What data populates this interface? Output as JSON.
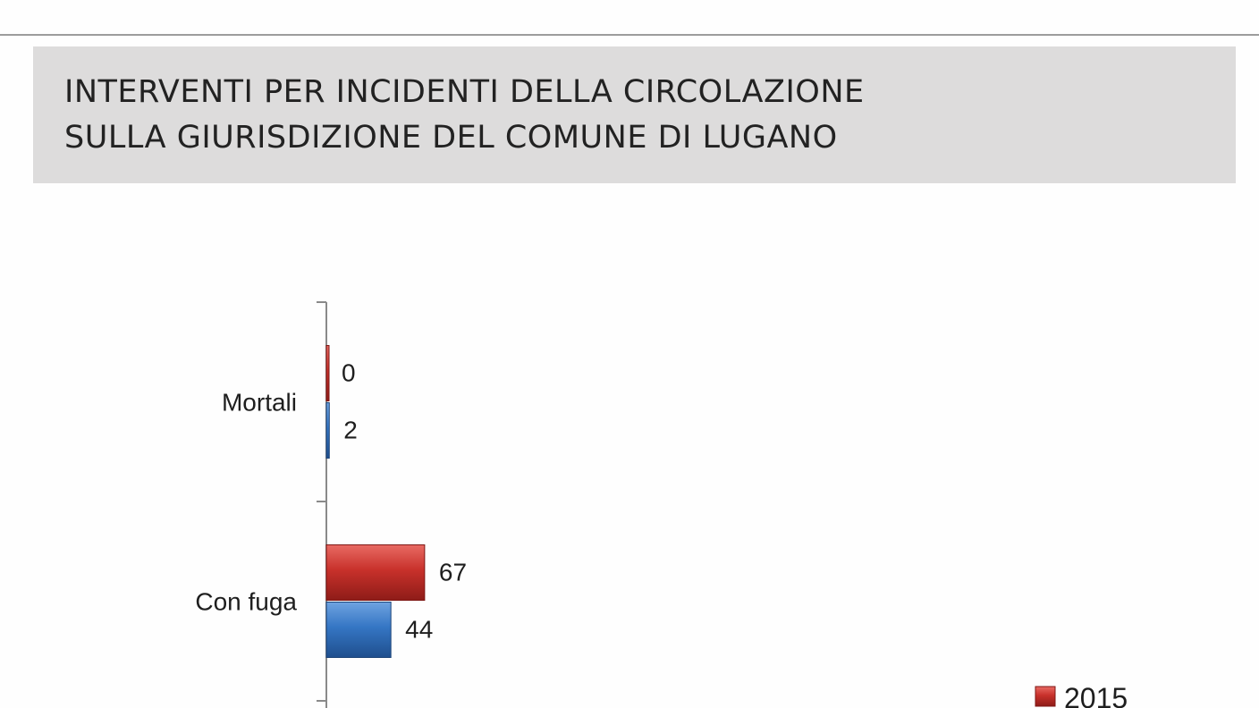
{
  "header": {
    "title_line1": "INTERVENTI PER INCIDENTI DELLA CIRCOLAZIONE",
    "title_line2": "SULLA GIURISDIZIONE DEL COMUNE DI LUGANO"
  },
  "chart_data": {
    "type": "bar",
    "orientation": "horizontal",
    "title": "INTERVENTI PER INCIDENTI DELLA CIRCOLAZIONE SULLA GIURISDIZIONE DEL COMUNE DI LUGANO",
    "categories": [
      "Mortali",
      "Con fuga"
    ],
    "series": [
      {
        "name": "2015",
        "values": [
          0,
          67
        ],
        "color": "#c0392b"
      },
      {
        "name": "",
        "values": [
          2,
          44
        ],
        "color": "#2e6db4"
      }
    ],
    "data_labels": true,
    "legend_placement": "bottom-right",
    "grid": false
  }
}
